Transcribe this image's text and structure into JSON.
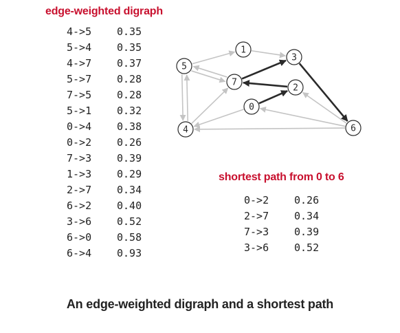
{
  "graph_heading": "edge-weighted digraph",
  "edges": [
    {
      "from_to": "4->5",
      "weight": "0.35"
    },
    {
      "from_to": "5->4",
      "weight": "0.35"
    },
    {
      "from_to": "4->7",
      "weight": "0.37"
    },
    {
      "from_to": "5->7",
      "weight": "0.28"
    },
    {
      "from_to": "7->5",
      "weight": "0.28"
    },
    {
      "from_to": "5->1",
      "weight": "0.32"
    },
    {
      "from_to": "0->4",
      "weight": "0.38"
    },
    {
      "from_to": "0->2",
      "weight": "0.26"
    },
    {
      "from_to": "7->3",
      "weight": "0.39"
    },
    {
      "from_to": "1->3",
      "weight": "0.29"
    },
    {
      "from_to": "2->7",
      "weight": "0.34"
    },
    {
      "from_to": "6->2",
      "weight": "0.40"
    },
    {
      "from_to": "3->6",
      "weight": "0.52"
    },
    {
      "from_to": "6->0",
      "weight": "0.58"
    },
    {
      "from_to": "6->4",
      "weight": "0.93"
    }
  ],
  "path_heading": "shortest path from 0 to 6",
  "path_edges": [
    {
      "from_to": "0->2",
      "weight": "0.26"
    },
    {
      "from_to": "2->7",
      "weight": "0.34"
    },
    {
      "from_to": "7->3",
      "weight": "0.39"
    },
    {
      "from_to": "3->6",
      "weight": "0.52"
    }
  ],
  "caption": "An edge-weighted digraph and a shortest path",
  "graph": {
    "nodes": [
      "0",
      "1",
      "2",
      "3",
      "4",
      "5",
      "6",
      "7"
    ],
    "highlighted_path": [
      "0->2",
      "2->7",
      "7->3",
      "3->6"
    ]
  },
  "colors": {
    "heading": "#c8102e",
    "path_edge": "#2a2a2a",
    "other_edge": "#c4c4c4",
    "text": "#222222"
  }
}
